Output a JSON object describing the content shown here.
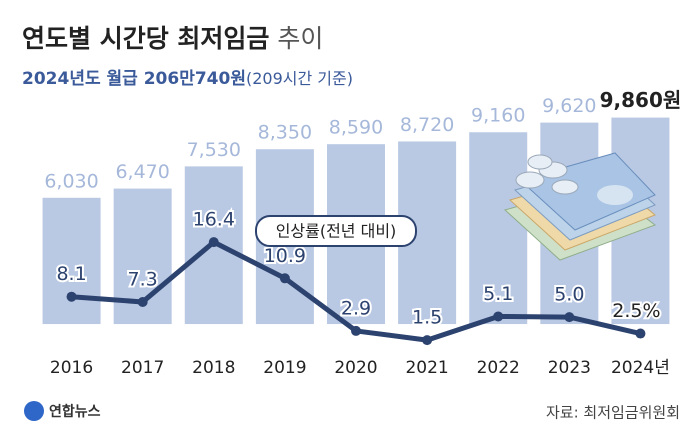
{
  "chart_data": {
    "type": "bar-line",
    "title": "연도별 시간당 최저임금",
    "title_suffix": "추이",
    "subtitle": "2024년도 월급 206만740원",
    "subtitle_note": "(209시간 기준)",
    "source": "자료: 최저임금위원회",
    "logo": "연합뉴스",
    "categories": [
      "2016",
      "2017",
      "2018",
      "2019",
      "2020",
      "2021",
      "2022",
      "2023",
      "2024년"
    ],
    "series": [
      {
        "type": "bar",
        "color": "#b9c8e3",
        "label_color": "#a6b8da",
        "values": [
          6030,
          6470,
          7530,
          8350,
          8590,
          8720,
          9160,
          9620,
          9860
        ],
        "value_labels": [
          "6,030",
          "6,470",
          "7,530",
          "8,350",
          "8,590",
          "8,720",
          "9,160",
          "9,620",
          "9,860원"
        ]
      },
      {
        "type": "line",
        "axis": "y2",
        "name": "인상률(전년 대비)",
        "color": "#2d436f",
        "values": [
          8.1,
          7.3,
          16.4,
          10.9,
          2.9,
          1.5,
          5.1,
          5.0,
          2.5
        ],
        "value_labels": [
          "8.1",
          "7.3",
          "16.4",
          "10.9",
          "2.9",
          "1.5",
          "5.1",
          "5.0",
          "2.5%"
        ]
      }
    ],
    "ylim": [
      -1000,
      10700
    ],
    "y2lim": [
      0,
      38
    ]
  }
}
